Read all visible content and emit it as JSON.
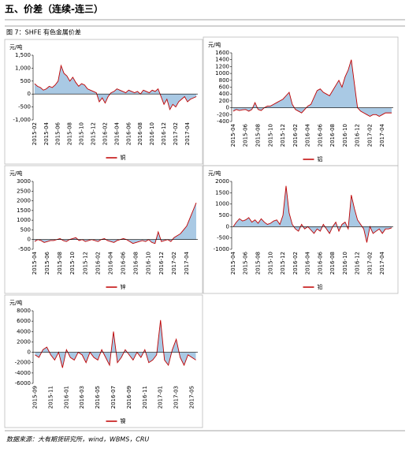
{
  "header": {
    "title": "五、价差（连续-连三）"
  },
  "figure": {
    "caption": "图 7：SHFE 有色金属价差"
  },
  "source": "数据来源：大有期货研究所，wind，WBMS，CRU",
  "chart_data": [
    {
      "type": "area",
      "y_label": "元/吨",
      "categories": [
        "2015-02",
        null,
        null,
        null,
        "2015-04",
        null,
        null,
        null,
        "2015-06",
        null,
        null,
        null,
        "2015-08",
        null,
        null,
        null,
        "2015-10",
        null,
        null,
        null,
        "2015-12",
        null,
        null,
        null,
        "2016-02",
        null,
        null,
        null,
        "2016-04",
        null,
        null,
        null,
        "2016-06",
        null,
        null,
        null,
        "2016-08",
        null,
        null,
        null,
        "2016-10",
        null,
        null,
        null,
        "2016-12",
        null,
        null,
        null,
        "2017-02",
        null,
        null,
        null,
        "2017-04",
        null,
        null,
        null
      ],
      "series": [
        {
          "name": "铜",
          "color": "#c00000",
          "fill": "#a9c9e4",
          "values": [
            400,
            300,
            250,
            150,
            200,
            300,
            250,
            350,
            500,
            1100,
            800,
            700,
            500,
            650,
            450,
            300,
            400,
            350,
            200,
            150,
            100,
            50,
            -300,
            -150,
            -350,
            -100,
            50,
            100,
            200,
            150,
            100,
            50,
            150,
            100,
            50,
            100,
            0,
            150,
            100,
            50,
            150,
            100,
            200,
            -100,
            -400,
            -200,
            -600,
            -400,
            -500,
            -300,
            -200,
            -100,
            -300,
            -200,
            -150,
            -100
          ]
        }
      ],
      "ylim": [
        -1000,
        1500
      ],
      "yticks": [
        {
          "value": -1000,
          "label": "-1,000"
        },
        -500,
        0,
        500,
        {
          "value": 1000,
          "label": "1,000"
        },
        {
          "value": 1500,
          "label": "1,500"
        }
      ]
    },
    {
      "type": "area",
      "y_label": "元/吨",
      "categories": [
        "2015-04",
        null,
        null,
        null,
        "2015-06",
        null,
        null,
        null,
        "2015-08",
        null,
        null,
        null,
        "2015-10",
        null,
        null,
        null,
        "2015-12",
        null,
        null,
        null,
        "2016-02",
        null,
        null,
        null,
        "2016-04",
        null,
        null,
        null,
        "2016-06",
        null,
        null,
        null,
        "2016-08",
        null,
        null,
        null,
        "2016-10",
        null,
        null,
        null,
        "2016-12",
        null,
        null,
        null,
        "2017-02",
        null,
        null,
        null,
        "2017-04",
        null,
        null,
        null
      ],
      "series": [
        {
          "name": "铝",
          "color": "#c00000",
          "fill": "#a9c9e4",
          "values": [
            -100,
            -50,
            -80,
            -60,
            -50,
            -100,
            -50,
            150,
            -50,
            -80,
            0,
            50,
            50,
            100,
            150,
            200,
            250,
            350,
            450,
            100,
            -50,
            -100,
            -150,
            -50,
            50,
            100,
            300,
            500,
            550,
            450,
            400,
            350,
            500,
            650,
            800,
            600,
            900,
            1100,
            1400,
            700,
            0,
            -100,
            -150,
            -200,
            -250,
            -200,
            -200,
            -250,
            -200,
            -150,
            -150,
            -150
          ]
        }
      ],
      "ylim": [
        -400,
        1600
      ],
      "yticks": [
        -400,
        -200,
        0,
        200,
        400,
        600,
        800,
        1000,
        1200,
        1400,
        1600
      ]
    },
    {
      "type": "area",
      "y_label": "元/吨",
      "categories": [
        "2015-04",
        null,
        null,
        null,
        "2015-06",
        null,
        null,
        null,
        "2015-08",
        null,
        null,
        null,
        "2015-10",
        null,
        null,
        null,
        "2015-12",
        null,
        null,
        null,
        "2016-02",
        null,
        null,
        null,
        "2016-04",
        null,
        null,
        null,
        "2016-06",
        null,
        null,
        null,
        "2016-08",
        null,
        null,
        null,
        "2016-10",
        null,
        null,
        null,
        "2016-12",
        null,
        null,
        null,
        "2017-02",
        null,
        null,
        null,
        "2017-04",
        null,
        null,
        null
      ],
      "series": [
        {
          "name": "锌",
          "color": "#c00000",
          "fill": "#a9c9e4",
          "values": [
            -100,
            0,
            -50,
            -150,
            -100,
            -50,
            -50,
            0,
            50,
            -50,
            -100,
            0,
            50,
            100,
            -50,
            0,
            -100,
            -50,
            0,
            -50,
            -100,
            0,
            50,
            -50,
            -100,
            -150,
            -50,
            0,
            50,
            0,
            -100,
            -200,
            -150,
            -100,
            -50,
            -100,
            0,
            -150,
            -200,
            400,
            -100,
            -50,
            0,
            -100,
            100,
            200,
            300,
            500,
            700,
            1100,
            1500,
            1900
          ]
        }
      ],
      "ylim": [
        -500,
        3000
      ],
      "yticks": [
        -500,
        0,
        500,
        1000,
        1500,
        2000,
        2500,
        3000
      ]
    },
    {
      "type": "area",
      "y_label": "元/吨",
      "categories": [
        "2015-04",
        null,
        null,
        null,
        "2015-06",
        null,
        null,
        null,
        "2015-08",
        null,
        null,
        null,
        "2015-10",
        null,
        null,
        null,
        "2015-12",
        null,
        null,
        null,
        "2016-02",
        null,
        null,
        null,
        "2016-04",
        null,
        null,
        null,
        "2016-06",
        null,
        null,
        null,
        "2016-08",
        null,
        null,
        null,
        "2016-10",
        null,
        null,
        null,
        "2016-12",
        null,
        null,
        null,
        "2017-02",
        null,
        null,
        null,
        "2017-04",
        null,
        null,
        null
      ],
      "series": [
        {
          "name": "铅",
          "color": "#c00000",
          "fill": "#a9c9e4",
          "values": [
            0,
            200,
            350,
            250,
            300,
            400,
            200,
            300,
            150,
            350,
            200,
            100,
            150,
            250,
            300,
            100,
            500,
            1800,
            600,
            100,
            -100,
            -200,
            100,
            -100,
            0,
            -150,
            -300,
            -100,
            -200,
            100,
            -100,
            -300,
            0,
            200,
            -200,
            100,
            200,
            -100,
            1400,
            800,
            300,
            100,
            -100,
            -700,
            0,
            -300,
            -200,
            -100,
            -300,
            -100,
            -100,
            -50
          ]
        }
      ],
      "ylim": [
        -1000,
        2000
      ],
      "yticks": [
        -1000,
        -500,
        0,
        500,
        1000,
        1500,
        2000
      ]
    },
    {
      "type": "area",
      "y_label": "元/吨",
      "categories": [
        "2015-09",
        null,
        null,
        null,
        "2015-11",
        null,
        null,
        null,
        "2016-01",
        null,
        null,
        null,
        "2016-03",
        null,
        null,
        null,
        "2016-05",
        null,
        null,
        null,
        "2016-07",
        null,
        null,
        null,
        "2016-09",
        null,
        null,
        null,
        "2016-11",
        null,
        null,
        null,
        "2017-01",
        null,
        null,
        null,
        "2017-03",
        null,
        null,
        null,
        "2017-05",
        null
      ],
      "series": [
        {
          "name": "镍",
          "color": "#c00000",
          "fill": "#a9c9e4",
          "values": [
            -500,
            -1000,
            500,
            1000,
            -500,
            -1500,
            0,
            -3000,
            500,
            -1000,
            -1500,
            0,
            -500,
            -2000,
            0,
            -1000,
            -1500,
            500,
            -1000,
            -2500,
            4000,
            -2000,
            -1000,
            500,
            -500,
            -1500,
            0,
            -1000,
            500,
            -2000,
            -1500,
            -500,
            6200,
            -1500,
            -2500,
            500,
            2500,
            -1000,
            -2500,
            -500,
            -1000,
            -1500
          ]
        }
      ],
      "ylim": [
        -6000,
        8000
      ],
      "yticks": [
        -6000,
        -4000,
        -2000,
        0,
        2000,
        4000,
        6000,
        8000
      ]
    }
  ]
}
